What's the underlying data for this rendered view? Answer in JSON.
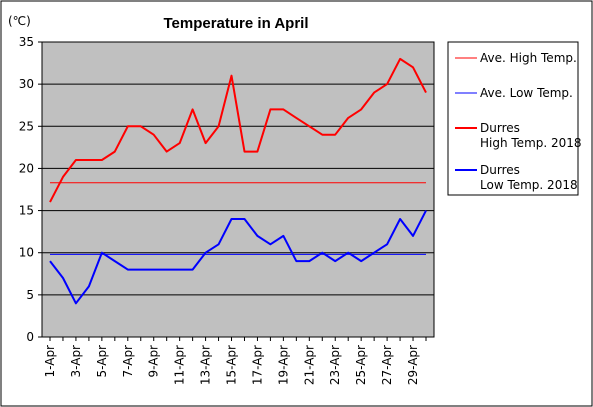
{
  "chart_data": {
    "type": "line",
    "title": "Temperature in April",
    "unit_label": "(℃)",
    "xlabel": "",
    "ylabel": "",
    "ylim": [
      0,
      35
    ],
    "yticks": [
      "0",
      "5",
      "10",
      "15",
      "20",
      "25",
      "30",
      "35"
    ],
    "x": [
      "1-Apr",
      "2-Apr",
      "3-Apr",
      "4-Apr",
      "5-Apr",
      "6-Apr",
      "7-Apr",
      "8-Apr",
      "9-Apr",
      "10-Apr",
      "11-Apr",
      "12-Apr",
      "13-Apr",
      "14-Apr",
      "15-Apr",
      "16-Apr",
      "17-Apr",
      "18-Apr",
      "19-Apr",
      "20-Apr",
      "21-Apr",
      "22-Apr",
      "23-Apr",
      "24-Apr",
      "25-Apr",
      "26-Apr",
      "27-Apr",
      "28-Apr",
      "29-Apr",
      "30-Apr"
    ],
    "xtick_labels": [
      "1-Apr",
      "3-Apr",
      "5-Apr",
      "7-Apr",
      "9-Apr",
      "11-Apr",
      "13-Apr",
      "15-Apr",
      "17-Apr",
      "19-Apr",
      "21-Apr",
      "23-Apr",
      "25-Apr",
      "27-Apr",
      "29-Apr"
    ],
    "grid": true,
    "plot_background": "#c0c0c0",
    "legend_placement": "right",
    "series": [
      {
        "name": "Ave. High Temp.",
        "color": "#ff0000",
        "style": "thin",
        "values": [
          18.3,
          18.3,
          18.3,
          18.3,
          18.3,
          18.3,
          18.3,
          18.3,
          18.3,
          18.3,
          18.3,
          18.3,
          18.3,
          18.3,
          18.3,
          18.3,
          18.3,
          18.3,
          18.3,
          18.3,
          18.3,
          18.3,
          18.3,
          18.3,
          18.3,
          18.3,
          18.3,
          18.3,
          18.3,
          18.3
        ]
      },
      {
        "name": "Ave. Low Temp.",
        "color": "#0000ff",
        "style": "thin",
        "values": [
          9.8,
          9.8,
          9.8,
          9.8,
          9.8,
          9.8,
          9.8,
          9.8,
          9.8,
          9.8,
          9.8,
          9.8,
          9.8,
          9.8,
          9.8,
          9.8,
          9.8,
          9.8,
          9.8,
          9.8,
          9.8,
          9.8,
          9.8,
          9.8,
          9.8,
          9.8,
          9.8,
          9.8,
          9.8,
          9.8
        ]
      },
      {
        "name": "Durres High Temp. 2018",
        "name_lines": [
          "Durres",
          "High Temp. 2018"
        ],
        "color": "#ff0000",
        "style": "thick",
        "values": [
          16,
          19,
          21,
          21,
          21,
          22,
          25,
          25,
          24,
          22,
          23,
          27,
          23,
          25,
          31,
          22,
          22,
          27,
          27,
          26,
          25,
          24,
          24,
          26,
          27,
          29,
          30,
          33,
          32,
          29
        ]
      },
      {
        "name": "Durres Low Temp. 2018",
        "name_lines": [
          "Durres",
          "Low Temp. 2018"
        ],
        "color": "#0000ff",
        "style": "thick",
        "values": [
          9,
          7,
          4,
          6,
          10,
          9,
          8,
          8,
          8,
          8,
          8,
          8,
          10,
          11,
          14,
          14,
          12,
          11,
          12,
          9,
          9,
          10,
          9,
          10,
          9,
          10,
          11,
          14,
          12,
          15
        ]
      }
    ]
  }
}
